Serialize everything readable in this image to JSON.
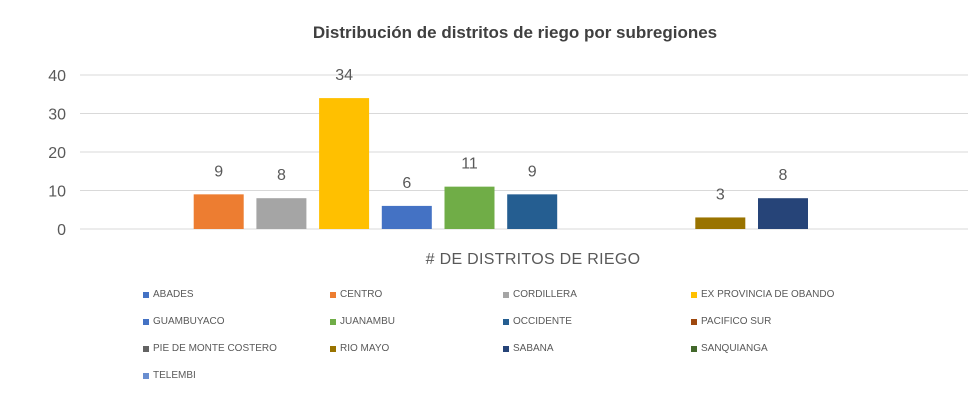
{
  "chart_data": {
    "type": "bar",
    "title": "Distribución de distritos de riego por subregiones",
    "xlabel": "# DE DISTRITOS DE RIEGO",
    "ylabel": "",
    "ylim": [
      0,
      40
    ],
    "yticks": [
      0,
      10,
      20,
      30,
      40
    ],
    "grid": true,
    "legend_position": "bottom",
    "categories": [
      "# DE DISTRITOS DE RIEGO"
    ],
    "series": [
      {
        "name": "ABADES",
        "values": [
          null
        ],
        "color": "#4472C4"
      },
      {
        "name": "CENTRO",
        "values": [
          9
        ],
        "color": "#ED7D31"
      },
      {
        "name": "CORDILLERA",
        "values": [
          8
        ],
        "color": "#A5A5A5"
      },
      {
        "name": "EX PROVINCIA DE OBANDO",
        "values": [
          34
        ],
        "color": "#FFC000"
      },
      {
        "name": "GUAMBUYACO",
        "values": [
          6
        ],
        "color": "#4472C4"
      },
      {
        "name": "JUANAMBU",
        "values": [
          11
        ],
        "color": "#70AD47"
      },
      {
        "name": "OCCIDENTE",
        "values": [
          9
        ],
        "color": "#255E91"
      },
      {
        "name": "PACIFICO SUR",
        "values": [
          null
        ],
        "color": "#9E480E"
      },
      {
        "name": "PIE DE MONTE COSTERO",
        "values": [
          null
        ],
        "color": "#636363"
      },
      {
        "name": "RIO MAYO",
        "values": [
          3
        ],
        "color": "#997300"
      },
      {
        "name": "SABANA",
        "values": [
          8
        ],
        "color": "#264478"
      },
      {
        "name": "SANQUIANGA",
        "values": [
          null
        ],
        "color": "#43682B"
      },
      {
        "name": "TELEMBI",
        "values": [
          null
        ],
        "color": "#698ED0"
      }
    ]
  }
}
